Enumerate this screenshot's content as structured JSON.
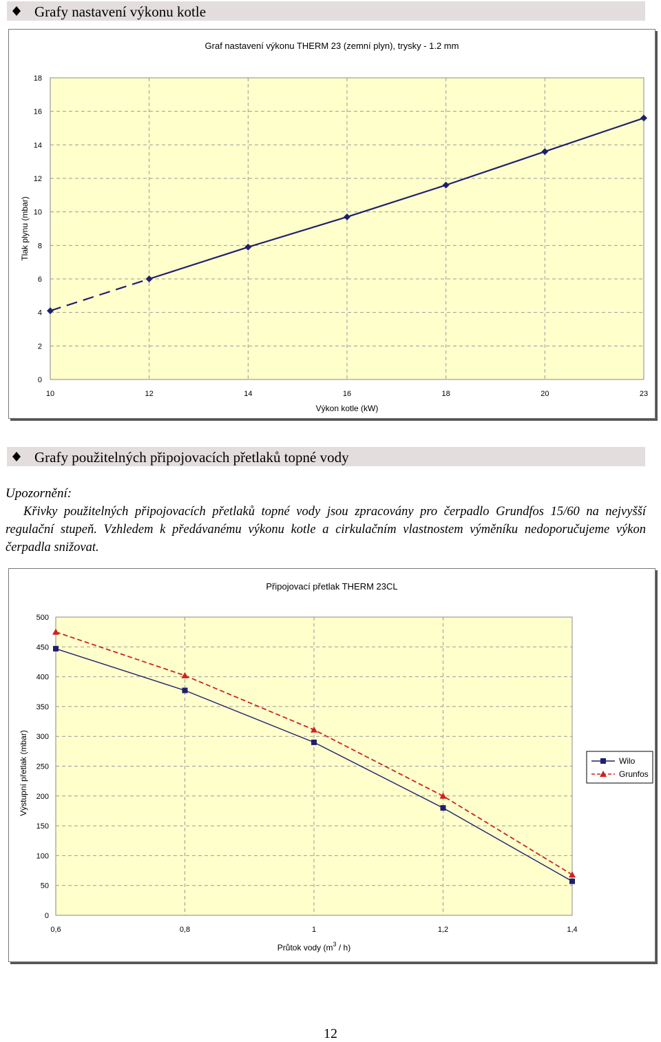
{
  "sections": [
    {
      "title": "Grafy nastavení výkonu kotle"
    },
    {
      "title": "Grafy použitelných připojovacích přetlaků topné vody"
    }
  ],
  "note": {
    "heading": "Upozornění:",
    "text": "Křivky použitelných připojovacích přetlaků topné vody jsou zpracovány pro čerpadlo  Grundfos 15/60 na nejvyšší regulační stupeň. Vzhledem k předávanému výkonu kotle a cirkulačním vlastnostem výměníku nedoporučujeme výkon čerpadla snižovat."
  },
  "page_number": "12",
  "colors": {
    "plot_area": "#ffffcc",
    "series_navy": "#1f1f6e",
    "series_red": "#cc2222",
    "section_bar": "#e3dddd"
  },
  "chart_data": [
    {
      "type": "line",
      "title": "Graf nastavení výkonu THERM 23 (zemní plyn), trysky - 1.2 mm",
      "xlabel": "Výkon kotle (kW)",
      "ylabel": "Tlak plynu (mbar)",
      "categories": [
        "10",
        "12",
        "14",
        "16",
        "18",
        "20",
        "23"
      ],
      "x_positions": [
        0,
        1,
        2,
        3,
        4,
        5,
        6
      ],
      "ylim": [
        0,
        18
      ],
      "yticks": [
        "0",
        "2",
        "4",
        "6",
        "8",
        "10",
        "12",
        "14",
        "16",
        "18"
      ],
      "grid": true,
      "series": [
        {
          "points": [
            [
              0,
              4.1
            ],
            [
              1,
              6.0
            ],
            [
              2,
              7.9
            ],
            [
              3,
              9.7
            ],
            [
              4,
              11.6
            ],
            [
              5,
              13.6
            ],
            [
              6,
              15.6
            ]
          ],
          "dashed_segment_until_index": 1,
          "marker": "diamond",
          "color": "#1f1f6e"
        }
      ]
    },
    {
      "type": "line",
      "title": "Připojovací přetlak THERM 23CL",
      "xlabel": "Průtok vody (m3 / h)",
      "ylabel": "Výstupní přetlak (mbar)",
      "categories": [
        "0,6",
        "0,8",
        "1",
        "1,2",
        "1,4"
      ],
      "x_positions": [
        0.6,
        0.8,
        1.0,
        1.2,
        1.4
      ],
      "ylim": [
        0,
        500
      ],
      "yticks": [
        "0",
        "50",
        "100",
        "150",
        "200",
        "250",
        "300",
        "350",
        "400",
        "450",
        "500"
      ],
      "grid": true,
      "legend_position": "right",
      "series": [
        {
          "name": "Wilo",
          "values": [
            447,
            377,
            290,
            180,
            57
          ],
          "marker": "square",
          "line": "solid",
          "color": "#1f1f6e"
        },
        {
          "name": "Grunfos",
          "values": [
            475,
            402,
            311,
            200,
            68
          ],
          "marker": "triangle",
          "line": "dashed",
          "color": "#cc2222"
        }
      ]
    }
  ]
}
